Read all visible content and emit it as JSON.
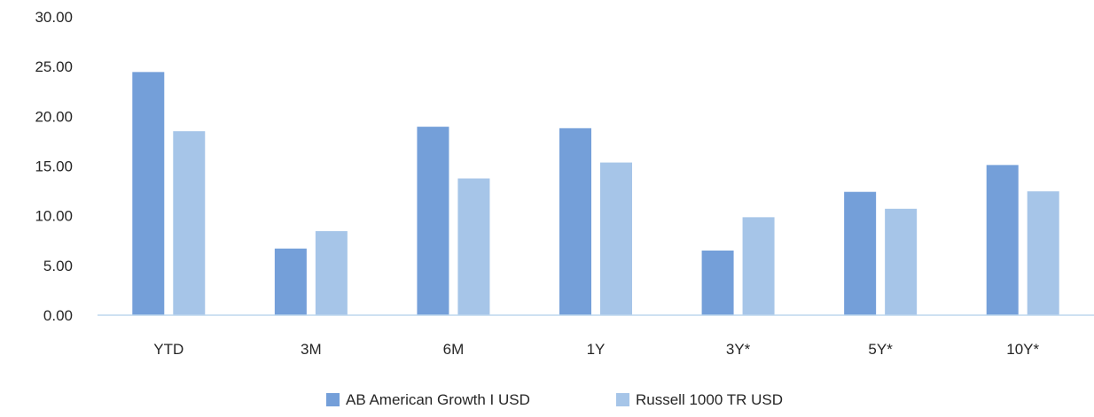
{
  "chart_data": {
    "type": "bar",
    "categories": [
      "YTD",
      "3M",
      "6M",
      "1Y",
      "3Y*",
      "5Y*",
      "10Y*"
    ],
    "series": [
      {
        "name": "AB American Growth I USD",
        "color": "#749fd9",
        "values": [
          24.45,
          6.7,
          18.95,
          18.8,
          6.5,
          12.4,
          15.1
        ]
      },
      {
        "name": "Russell 1000 TR USD",
        "color": "#a6c5e8",
        "values": [
          18.5,
          8.45,
          13.75,
          15.35,
          9.85,
          10.7,
          12.45
        ]
      }
    ],
    "yticks": [
      "0.00",
      "5.00",
      "10.00",
      "15.00",
      "20.00",
      "25.00",
      "30.00"
    ],
    "ylim": [
      0,
      30
    ],
    "grid": false,
    "axis_color": "#bdd7ee",
    "legend_position": "bottom-center",
    "title": "",
    "xlabel": "",
    "ylabel": ""
  }
}
